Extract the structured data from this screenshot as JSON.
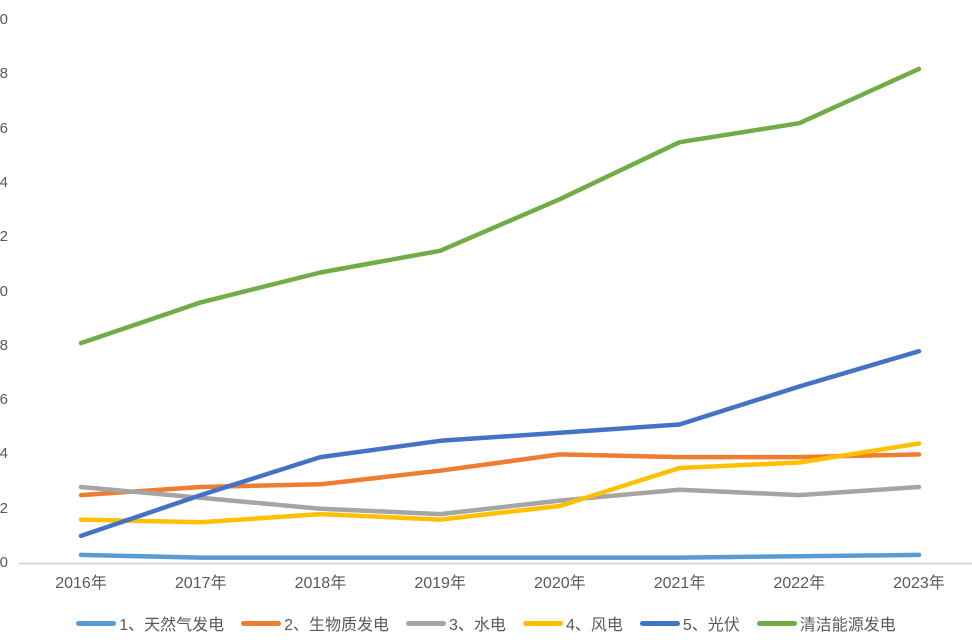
{
  "chart_data": {
    "type": "line",
    "title": "",
    "xlabel": "",
    "ylabel": "",
    "categories": [
      "2016年",
      "2017年",
      "2018年",
      "2019年",
      "2020年",
      "2021年",
      "2022年",
      "2023年"
    ],
    "series": [
      {
        "name": "1、天然气发电",
        "color": "#5B9BD5",
        "values": [
          0.3,
          0.2,
          0.2,
          0.2,
          0.2,
          0.2,
          0.25,
          0.3
        ]
      },
      {
        "name": "2、生物质发电",
        "color": "#ED7D31",
        "values": [
          2.5,
          2.8,
          2.9,
          3.4,
          4.0,
          3.9,
          3.9,
          4.0
        ]
      },
      {
        "name": "3、水电",
        "color": "#A5A5A5",
        "values": [
          2.8,
          2.4,
          2.0,
          1.8,
          2.3,
          2.7,
          2.5,
          2.8
        ]
      },
      {
        "name": "4、风电",
        "color": "#FFC000",
        "values": [
          1.6,
          1.5,
          1.8,
          1.6,
          2.1,
          3.5,
          3.7,
          4.4
        ]
      },
      {
        "name": "5、光伏",
        "color": "#4472C4",
        "values": [
          1.0,
          2.5,
          3.9,
          4.5,
          4.8,
          5.1,
          6.5,
          7.8
        ]
      },
      {
        "name": "清洁能源发电",
        "color": "#70AD47",
        "values": [
          8.1,
          9.6,
          10.7,
          11.5,
          13.4,
          15.5,
          16.2,
          18.2
        ]
      }
    ],
    "y_axis": {
      "min": 0,
      "max": 20,
      "step": 2,
      "labels_partially_cropped": true
    },
    "grid": false,
    "legend_position": "bottom",
    "axis_color": "#D9D9D9",
    "text_color": "#595959",
    "background": "#FFFFFF"
  }
}
